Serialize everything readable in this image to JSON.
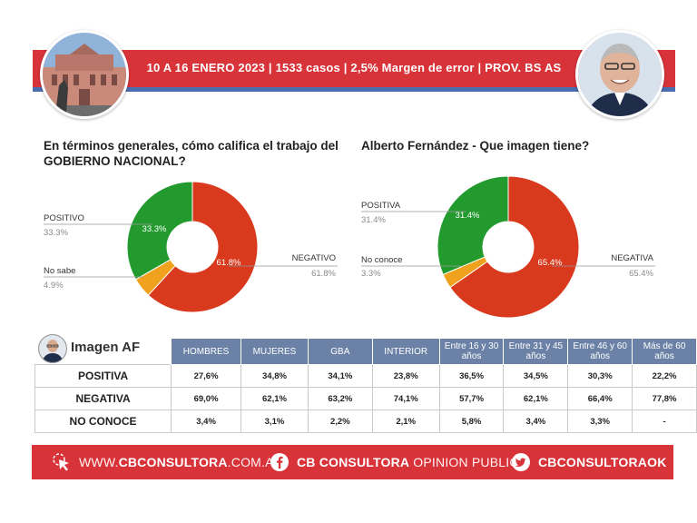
{
  "header": {
    "banner_text": "10 A 16 ENERO 2023 | 1533 casos  |  2,5% Margen de error  | PROV. BS AS"
  },
  "colors": {
    "negative": "#d93a1e",
    "positive": "#229a2e",
    "unknown": "#f0a21e",
    "banner": "#d9333a",
    "table_header": "#6b82a6"
  },
  "chart_data": [
    {
      "type": "pie",
      "donut": true,
      "title": "En términos generales, cómo califica el trabajo del GOBIERNO NACIONAL?",
      "slices": [
        {
          "label": "NEGATIVO",
          "value": 61.8,
          "pct": "61.8%",
          "color": "#d93a1e"
        },
        {
          "label": "No sabe",
          "value": 4.9,
          "pct": "4.9%",
          "color": "#f0a21e"
        },
        {
          "label": "POSITIVO",
          "value": 33.3,
          "pct": "33.3%",
          "color": "#229a2e"
        }
      ]
    },
    {
      "type": "pie",
      "donut": true,
      "title": "Alberto Fernández - Que imagen tiene?",
      "slices": [
        {
          "label": "NEGATIVA",
          "value": 65.4,
          "pct": "65.4%",
          "color": "#d93a1e"
        },
        {
          "label": "No conoce",
          "value": 3.3,
          "pct": "3.3%",
          "color": "#f0a21e"
        },
        {
          "label": "POSITIVA",
          "value": 31.4,
          "pct": "31.4%",
          "color": "#229a2e"
        }
      ]
    },
    {
      "type": "table",
      "title": "Imagen AF",
      "columns": [
        "HOMBRES",
        "MUJERES",
        "GBA",
        "INTERIOR",
        "Entre 16 y 30 años",
        "Entre 31 y 45 años",
        "Entre 46 y 60 años",
        "Más de 60 años"
      ],
      "rows": [
        {
          "label": "POSITIVA",
          "values": [
            "27,6%",
            "34,8%",
            "34,1%",
            "23,8%",
            "36,5%",
            "34,5%",
            "30,3%",
            "22,2%"
          ]
        },
        {
          "label": "NEGATIVA",
          "values": [
            "69,0%",
            "62,1%",
            "63,2%",
            "74,1%",
            "57,7%",
            "62,1%",
            "66,4%",
            "77,8%"
          ]
        },
        {
          "label": "NO CONOCE",
          "values": [
            "3,4%",
            "3,1%",
            "2,2%",
            "2,1%",
            "5,8%",
            "3,4%",
            "3,3%",
            "-"
          ]
        }
      ]
    }
  ],
  "footer": {
    "web_prefix": "WWW.",
    "web_bold": "CBCONSULTORA",
    "web_suffix": ".COM.AR",
    "fb_bold": "CB CONSULTORA",
    "fb_light": " OPINION PUBLICA",
    "tw": "CBCONSULTORAOK",
    "web_icon": "cursor-click-icon",
    "fb_icon": "facebook-icon",
    "tw_icon": "twitter-icon"
  }
}
